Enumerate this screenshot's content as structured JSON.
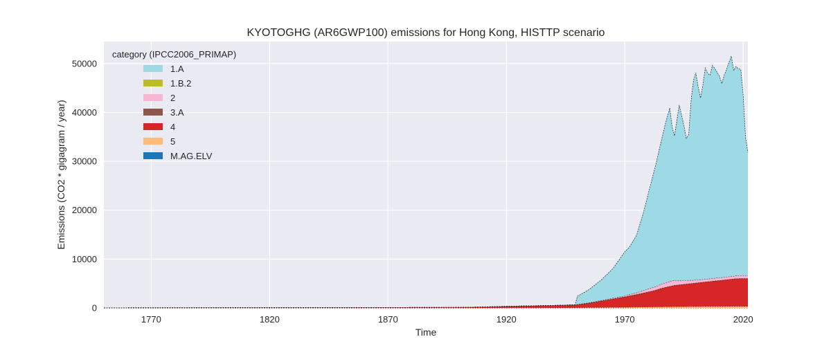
{
  "chart_data": {
    "type": "area",
    "stacked": true,
    "title": "KYOTOGHG (AR6GWP100) emissions for Hong Kong, HISTTP scenario",
    "xlabel": "Time",
    "ylabel": "Emissions (CO2 * gigagram / year)",
    "xlim": [
      1750,
      2022
    ],
    "ylim": [
      0,
      54500
    ],
    "xticks": [
      1770,
      1820,
      1870,
      1920,
      1970,
      2020
    ],
    "yticks": [
      0,
      10000,
      20000,
      30000,
      40000,
      50000
    ],
    "grid": true,
    "legend": {
      "title": "category (IPCC2006_PRIMAP)",
      "placement": "top-left"
    },
    "x": [
      1750,
      1800,
      1850,
      1900,
      1910,
      1920,
      1930,
      1940,
      1945,
      1949,
      1950,
      1955,
      1960,
      1965,
      1970,
      1972,
      1975,
      1978,
      1980,
      1983,
      1985,
      1987,
      1989,
      1990,
      1991,
      1993,
      1995,
      1996,
      1997,
      1998,
      1999,
      2000,
      2001,
      2002,
      2003,
      2004,
      2005,
      2006,
      2007,
      2008,
      2009,
      2010,
      2011,
      2012,
      2013,
      2014,
      2015,
      2016,
      2017,
      2018,
      2019,
      2020,
      2021,
      2022
    ],
    "series": [
      {
        "name": "M.AG.ELV",
        "color": "#1f77b4",
        "values": [
          0,
          0,
          0,
          0,
          0,
          0,
          0,
          0,
          0,
          0,
          0,
          0,
          0,
          0,
          0,
          0,
          0,
          0,
          0,
          0,
          0,
          0,
          0,
          0,
          0,
          0,
          0,
          0,
          0,
          0,
          0,
          0,
          0,
          0,
          0,
          0,
          0,
          0,
          0,
          0,
          0,
          0,
          0,
          0,
          0,
          0,
          0,
          0,
          0,
          0,
          0,
          0,
          0,
          0
        ]
      },
      {
        "name": "5",
        "color": "#ffbb78",
        "values": [
          0,
          0,
          0,
          0,
          0,
          10,
          20,
          30,
          40,
          50,
          60,
          80,
          100,
          120,
          140,
          150,
          170,
          190,
          200,
          220,
          230,
          240,
          250,
          260,
          260,
          270,
          280,
          280,
          290,
          290,
          300,
          300,
          300,
          300,
          310,
          310,
          310,
          310,
          320,
          320,
          320,
          320,
          320,
          320,
          330,
          330,
          330,
          330,
          330,
          330,
          330,
          330,
          330,
          330
        ]
      },
      {
        "name": "4",
        "color": "#d62728",
        "values": [
          20,
          40,
          60,
          100,
          180,
          300,
          380,
          450,
          500,
          550,
          600,
          900,
          1300,
          1700,
          2100,
          2300,
          2550,
          2850,
          3050,
          3400,
          3700,
          3950,
          4150,
          4250,
          4350,
          4450,
          4550,
          4600,
          4650,
          4700,
          4750,
          4800,
          4850,
          4900,
          4950,
          5000,
          5050,
          5100,
          5150,
          5200,
          5250,
          5300,
          5350,
          5400,
          5450,
          5500,
          5550,
          5600,
          5650,
          5650,
          5700,
          5700,
          5700,
          5700
        ]
      },
      {
        "name": "3.A",
        "color": "#8c564b",
        "values": [
          5,
          10,
          15,
          20,
          20,
          25,
          30,
          35,
          40,
          40,
          45,
          50,
          55,
          60,
          60,
          60,
          60,
          55,
          55,
          50,
          50,
          45,
          45,
          45,
          40,
          40,
          40,
          40,
          40,
          35,
          35,
          35,
          35,
          35,
          35,
          35,
          30,
          30,
          30,
          30,
          30,
          30,
          30,
          30,
          30,
          30,
          30,
          30,
          30,
          30,
          30,
          30,
          30,
          30
        ]
      },
      {
        "name": "2",
        "color": "#f7b6d2",
        "values": [
          0,
          0,
          0,
          0,
          0,
          0,
          0,
          5,
          10,
          20,
          30,
          60,
          100,
          150,
          200,
          250,
          350,
          500,
          600,
          700,
          800,
          900,
          1000,
          1000,
          1000,
          900,
          800,
          750,
          700,
          650,
          600,
          600,
          600,
          600,
          550,
          550,
          550,
          550,
          550,
          550,
          550,
          550,
          550,
          550,
          550,
          550,
          550,
          550,
          600,
          600,
          600,
          600,
          600,
          600
        ]
      },
      {
        "name": "1.B.2",
        "color": "#bcbd22",
        "values": [
          0,
          0,
          0,
          0,
          0,
          0,
          0,
          0,
          0,
          0,
          0,
          0,
          0,
          0,
          0,
          0,
          0,
          0,
          0,
          0,
          0,
          0,
          0,
          0,
          0,
          0,
          0,
          0,
          0,
          0,
          0,
          0,
          0,
          0,
          0,
          0,
          0,
          0,
          0,
          0,
          0,
          0,
          0,
          0,
          0,
          0,
          0,
          0,
          0,
          0,
          0,
          0,
          0,
          0
        ]
      },
      {
        "name": "1.A",
        "color": "#9edae5",
        "values": [
          0,
          0,
          0,
          0,
          0,
          0,
          0,
          0,
          0,
          0,
          1665,
          2710,
          4145,
          6015,
          9000,
          9690,
          11770,
          16105,
          19595,
          24780,
          28520,
          32265,
          35455,
          31445,
          29550,
          35840,
          31630,
          29025,
          29820,
          36725,
          40810,
          42365,
          39415,
          37115,
          39780,
          43205,
          42055,
          41610,
          43550,
          42900,
          42045,
          41200,
          39650,
          41345,
          42435,
          43840,
          45040,
          42090,
          42790,
          42290,
          42140,
          36890,
          28240,
          25140
        ]
      }
    ]
  }
}
